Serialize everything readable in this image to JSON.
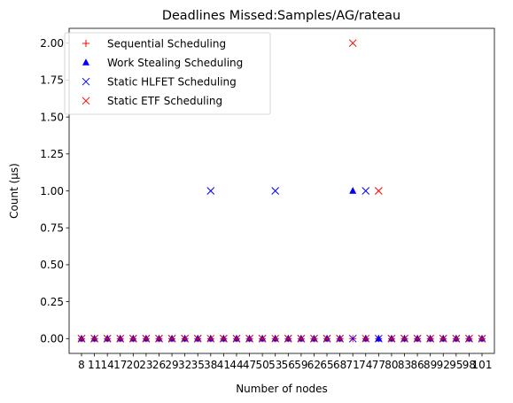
{
  "chart_data": {
    "type": "scatter",
    "title": "Deadlines Missed:Samples/AG/rateau",
    "xlabel": "Number of nodes",
    "ylabel": "Count (µs)",
    "categories": [
      "8",
      "11",
      "14",
      "17",
      "20",
      "23",
      "26",
      "29",
      "32",
      "35",
      "38",
      "41",
      "44",
      "47",
      "50",
      "53",
      "56",
      "59",
      "62",
      "65",
      "68",
      "71",
      "74",
      "77",
      "80",
      "83",
      "86",
      "89",
      "92",
      "95",
      "98",
      "101"
    ],
    "ylim": [
      -0.1,
      2.1
    ],
    "yticks": [
      "0.00",
      "0.25",
      "0.50",
      "0.75",
      "1.00",
      "1.25",
      "1.50",
      "1.75",
      "2.00"
    ],
    "ytick_values": [
      0,
      0.25,
      0.5,
      0.75,
      1.0,
      1.25,
      1.5,
      1.75,
      2.0
    ],
    "legend_position": "upper left",
    "series": [
      {
        "name": "Sequential Scheduling",
        "marker": "plus",
        "color": "#ff0000",
        "values": [
          0,
          0,
          0,
          0,
          0,
          0,
          0,
          0,
          0,
          0,
          0,
          0,
          0,
          0,
          0,
          0,
          0,
          0,
          0,
          0,
          0,
          0,
          0,
          0,
          0,
          0,
          0,
          0,
          0,
          0,
          0,
          0
        ]
      },
      {
        "name": "Work Stealing Scheduling",
        "marker": "triangle",
        "color": "#0000ff",
        "values": [
          0,
          0,
          0,
          0,
          0,
          0,
          0,
          0,
          0,
          0,
          0,
          0,
          0,
          0,
          0,
          0,
          0,
          0,
          0,
          0,
          0,
          1,
          0,
          0,
          0,
          0,
          0,
          0,
          0,
          0,
          0,
          0
        ]
      },
      {
        "name": "Static HLFET Scheduling",
        "marker": "x",
        "color": "#0000ff",
        "values": [
          0,
          0,
          0,
          0,
          0,
          0,
          0,
          0,
          0,
          0,
          1,
          0,
          0,
          0,
          0,
          1,
          0,
          0,
          0,
          0,
          0,
          0,
          1,
          0,
          0,
          0,
          0,
          0,
          0,
          0,
          0,
          0
        ]
      },
      {
        "name": "Static ETF Scheduling",
        "marker": "x",
        "color": "#ff0000",
        "values": [
          0,
          0,
          0,
          0,
          0,
          0,
          0,
          0,
          0,
          0,
          0,
          0,
          0,
          0,
          0,
          0,
          0,
          0,
          0,
          0,
          0,
          2,
          0,
          1,
          0,
          0,
          0,
          0,
          0,
          0,
          0,
          0
        ]
      }
    ]
  }
}
